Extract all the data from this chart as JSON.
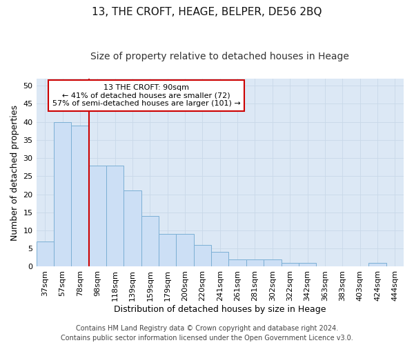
{
  "title": "13, THE CROFT, HEAGE, BELPER, DE56 2BQ",
  "subtitle": "Size of property relative to detached houses in Heage",
  "xlabel": "Distribution of detached houses by size in Heage",
  "ylabel": "Number of detached properties",
  "categories": [
    "37sqm",
    "57sqm",
    "78sqm",
    "98sqm",
    "118sqm",
    "139sqm",
    "159sqm",
    "179sqm",
    "200sqm",
    "220sqm",
    "241sqm",
    "261sqm",
    "281sqm",
    "302sqm",
    "322sqm",
    "342sqm",
    "363sqm",
    "383sqm",
    "403sqm",
    "424sqm",
    "444sqm"
  ],
  "values": [
    7,
    40,
    39,
    28,
    28,
    21,
    14,
    9,
    9,
    6,
    4,
    2,
    2,
    2,
    1,
    1,
    0,
    0,
    0,
    1,
    0
  ],
  "bar_color": "#ccdff5",
  "bar_edge_color": "#7bafd4",
  "vline_x_index": 2,
  "vline_color": "#cc0000",
  "annotation_text": "13 THE CROFT: 90sqm\n← 41% of detached houses are smaller (72)\n57% of semi-detached houses are larger (101) →",
  "annotation_box_color": "#ffffff",
  "annotation_box_edge": "#cc0000",
  "ylim": [
    0,
    52
  ],
  "yticks": [
    0,
    5,
    10,
    15,
    20,
    25,
    30,
    35,
    40,
    45,
    50
  ],
  "grid_color": "#c8d8e8",
  "background_color": "#dce8f5",
  "footnote": "Contains HM Land Registry data © Crown copyright and database right 2024.\nContains public sector information licensed under the Open Government Licence v3.0.",
  "title_fontsize": 11,
  "subtitle_fontsize": 10,
  "xlabel_fontsize": 9,
  "ylabel_fontsize": 9,
  "tick_fontsize": 8,
  "annotation_fontsize": 8,
  "footnote_fontsize": 7
}
